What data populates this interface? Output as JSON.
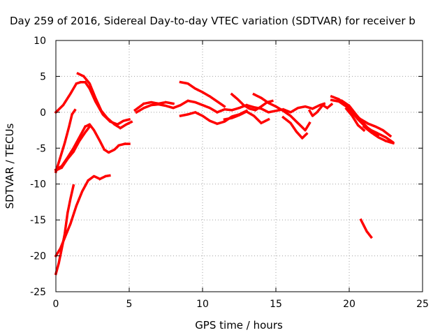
{
  "chart_data": {
    "type": "scatter",
    "title": "Day 259 of 2016, Sidereal Day-to-day VTEC variation (SDTVAR) for receiver b",
    "xlabel": "GPS time / hours",
    "ylabel": "SDTVAR / TECUs",
    "xlim": [
      0,
      25
    ],
    "ylim": [
      -25,
      10
    ],
    "xticks": [
      "0",
      "5",
      "10",
      "15",
      "20",
      "25"
    ],
    "yticks": [
      "10",
      "5",
      "0",
      "-5",
      "-10",
      "-15",
      "-20",
      "-25"
    ],
    "grid": true,
    "color": "#ff0000",
    "series": [
      {
        "points": [
          [
            0,
            0
          ],
          [
            0.5,
            1
          ],
          [
            1,
            2.6
          ],
          [
            1.4,
            4
          ],
          [
            1.7,
            4.2
          ],
          [
            2,
            4.2
          ],
          [
            2.3,
            3.3
          ],
          [
            2.7,
            1.5
          ],
          [
            3.2,
            -0.3
          ],
          [
            3.7,
            -1.3
          ],
          [
            4.2,
            -1.7
          ],
          [
            4.6,
            -1.2
          ],
          [
            5,
            -1
          ]
        ]
      },
      {
        "points": [
          [
            1.5,
            5.4
          ],
          [
            1.9,
            5
          ],
          [
            2.3,
            4
          ],
          [
            2.7,
            2
          ],
          [
            3.1,
            0.2
          ],
          [
            3.5,
            -0.8
          ],
          [
            4,
            -1.7
          ],
          [
            4.4,
            -2.2
          ],
          [
            4.8,
            -1.7
          ],
          [
            5.2,
            -1.3
          ]
        ]
      },
      {
        "points": [
          [
            0,
            -8.3
          ],
          [
            0.3,
            -6.3
          ],
          [
            0.6,
            -4.3
          ],
          [
            0.9,
            -2
          ],
          [
            1.1,
            -0.3
          ],
          [
            1.3,
            0.3
          ]
        ]
      },
      {
        "points": [
          [
            0,
            -8
          ],
          [
            0.4,
            -7.5
          ],
          [
            0.8,
            -6.3
          ],
          [
            1.2,
            -5
          ],
          [
            1.6,
            -3.5
          ],
          [
            2,
            -2
          ],
          [
            2.3,
            -1.7
          ],
          [
            2.6,
            -2.5
          ],
          [
            3,
            -4
          ],
          [
            3.3,
            -5.2
          ],
          [
            3.6,
            -5.6
          ],
          [
            4,
            -5.2
          ],
          [
            4.3,
            -4.6
          ],
          [
            4.7,
            -4.4
          ],
          [
            5,
            -4.4
          ]
        ]
      },
      {
        "points": [
          [
            0,
            -8.1
          ],
          [
            0.4,
            -7.7
          ],
          [
            0.8,
            -6.5
          ],
          [
            1.2,
            -5.5
          ],
          [
            1.6,
            -4
          ],
          [
            2,
            -2.8
          ],
          [
            2.3,
            -2
          ]
        ]
      },
      {
        "points": [
          [
            0,
            -22.5
          ],
          [
            0.2,
            -21
          ],
          [
            0.4,
            -19
          ],
          [
            0.6,
            -17
          ],
          [
            0.8,
            -14
          ],
          [
            1,
            -12
          ],
          [
            1.2,
            -10.2
          ]
        ]
      },
      {
        "points": [
          [
            0,
            -20
          ],
          [
            0.3,
            -19
          ],
          [
            0.6,
            -17.5
          ],
          [
            1,
            -15.5
          ],
          [
            1.4,
            -13
          ],
          [
            1.8,
            -11
          ],
          [
            2.2,
            -9.5
          ],
          [
            2.6,
            -8.9
          ],
          [
            3,
            -9.3
          ],
          [
            3.4,
            -8.9
          ],
          [
            3.7,
            -8.8
          ]
        ]
      },
      {
        "points": [
          [
            5.5,
            0
          ],
          [
            6,
            0.6
          ],
          [
            6.5,
            1
          ],
          [
            7,
            1.1
          ],
          [
            7.5,
            0.9
          ],
          [
            8,
            0.6
          ],
          [
            8.5,
            1
          ],
          [
            9,
            1.6
          ],
          [
            9.5,
            1.4
          ],
          [
            10,
            1
          ],
          [
            10.5,
            0.6
          ],
          [
            11,
            0
          ],
          [
            11.5,
            0.4
          ],
          [
            12,
            0.3
          ],
          [
            12.5,
            0.6
          ],
          [
            13,
            1
          ],
          [
            13.5,
            0.7
          ],
          [
            14,
            0.5
          ],
          [
            14.5,
            0
          ],
          [
            15,
            0.2
          ],
          [
            15.5,
            0.4
          ],
          [
            16,
            0
          ],
          [
            16.5,
            0.6
          ],
          [
            17,
            0.8
          ],
          [
            17.5,
            0.5
          ],
          [
            18,
            1
          ],
          [
            18.3,
            1.2
          ]
        ]
      },
      {
        "points": [
          [
            5.4,
            0.3
          ],
          [
            6,
            1.2
          ],
          [
            6.5,
            1.4
          ],
          [
            7,
            1.2
          ],
          [
            7.5,
            1.4
          ],
          [
            8,
            1.2
          ]
        ]
      },
      {
        "points": [
          [
            8.5,
            4.2
          ],
          [
            9,
            4
          ],
          [
            9.5,
            3.3
          ],
          [
            10,
            2.8
          ],
          [
            10.5,
            2.2
          ],
          [
            11,
            1.5
          ],
          [
            11.5,
            0.8
          ]
        ]
      },
      {
        "points": [
          [
            8.5,
            -0.5
          ],
          [
            9,
            -0.3
          ],
          [
            9.5,
            0
          ],
          [
            10,
            -0.5
          ],
          [
            10.5,
            -1.2
          ],
          [
            11,
            -1.6
          ],
          [
            11.5,
            -1.3
          ],
          [
            12,
            -0.6
          ],
          [
            12.5,
            -0.3
          ],
          [
            13,
            0.2
          ]
        ]
      },
      {
        "points": [
          [
            12,
            2.5
          ],
          [
            12.4,
            1.8
          ],
          [
            12.8,
            1
          ],
          [
            13.2,
            0.5
          ],
          [
            13.6,
            0.3
          ],
          [
            14,
            0.8
          ],
          [
            14.4,
            1.4
          ],
          [
            14.8,
            1.6
          ]
        ]
      },
      {
        "points": [
          [
            11.5,
            -1
          ],
          [
            12,
            -0.8
          ],
          [
            12.5,
            -0.4
          ],
          [
            13,
            0.1
          ],
          [
            13.5,
            -0.5
          ],
          [
            14,
            -1.5
          ],
          [
            14.5,
            -1
          ]
        ]
      },
      {
        "points": [
          [
            13.5,
            2.5
          ],
          [
            14,
            2
          ],
          [
            14.5,
            1.3
          ],
          [
            15,
            0.8
          ],
          [
            15.5,
            0.2
          ],
          [
            16,
            -0.5
          ],
          [
            16.5,
            -1.5
          ],
          [
            17,
            -2.5
          ],
          [
            17.3,
            -1.5
          ]
        ]
      },
      {
        "points": [
          [
            15.5,
            -0.7
          ],
          [
            16,
            -1.5
          ],
          [
            16.4,
            -2.7
          ],
          [
            16.8,
            -3.6
          ],
          [
            17.1,
            -3
          ]
        ]
      },
      {
        "points": [
          [
            17.3,
            0.2
          ],
          [
            17.5,
            -0.5
          ],
          [
            17.8,
            0
          ],
          [
            18.2,
            1
          ],
          [
            18.5,
            0.6
          ],
          [
            18.8,
            1.1
          ]
        ]
      },
      {
        "points": [
          [
            18.8,
            2.2
          ],
          [
            19.3,
            1.8
          ],
          [
            19.8,
            1
          ],
          [
            20.2,
            0
          ],
          [
            20.6,
            -1
          ],
          [
            21,
            -1.8
          ],
          [
            21.5,
            -2.5
          ],
          [
            22,
            -3
          ],
          [
            22.5,
            -3.5
          ],
          [
            23,
            -4.2
          ]
        ]
      },
      {
        "points": [
          [
            18.8,
            1.7
          ],
          [
            19.3,
            1.5
          ],
          [
            19.8,
            0.8
          ],
          [
            20.3,
            -0.3
          ],
          [
            20.8,
            -1
          ],
          [
            21.3,
            -1.6
          ],
          [
            21.8,
            -2
          ],
          [
            22.3,
            -2.5
          ],
          [
            22.8,
            -3.3
          ]
        ]
      },
      {
        "points": [
          [
            19.5,
            1.6
          ],
          [
            20,
            0.9
          ],
          [
            20.5,
            -0.4
          ],
          [
            21,
            -1.6
          ],
          [
            21.5,
            -2.7
          ],
          [
            22,
            -3.3
          ]
        ]
      },
      {
        "points": [
          [
            19.8,
            0.5
          ],
          [
            20.2,
            -0.5
          ],
          [
            20.6,
            -1.8
          ],
          [
            21,
            -2.5
          ]
        ]
      },
      {
        "points": [
          [
            21,
            -2
          ],
          [
            21.5,
            -2.8
          ],
          [
            22,
            -3.5
          ],
          [
            22.5,
            -4
          ],
          [
            23,
            -4.3
          ]
        ]
      },
      {
        "points": [
          [
            20.8,
            -15
          ],
          [
            21,
            -15.8
          ],
          [
            21.2,
            -16.6
          ],
          [
            21.5,
            -17.4
          ]
        ]
      }
    ]
  }
}
